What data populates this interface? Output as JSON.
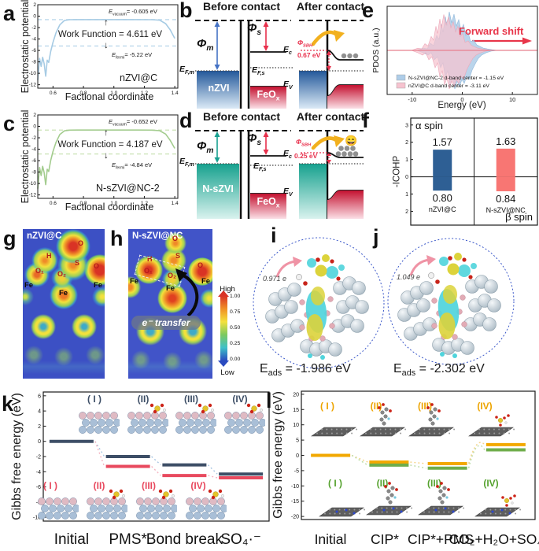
{
  "chart_data": [
    {
      "id": "a",
      "type": "line",
      "title": "nZVI@C",
      "xlabel": "Factional coordinate",
      "ylabel": "Electrostatic potential",
      "xlim": [
        0.5,
        1.42
      ],
      "ylim": [
        -12.6,
        2
      ],
      "xticks": [
        0.6,
        0.8,
        1.0,
        1.2,
        1.4
      ],
      "yticks": [
        2,
        0,
        -2,
        -4,
        -6,
        -8,
        -10,
        -12
      ],
      "e_vacuum_eV": -0.605,
      "e_fermi_eV": -5.22,
      "work_function_eV": 4.611,
      "color": "#a6cbe4",
      "dash_color": "#bcd8ec",
      "curve_x": [
        0.5,
        0.512,
        0.522,
        0.532,
        0.542,
        0.552,
        0.562,
        0.572,
        0.585,
        0.6,
        0.62,
        0.645,
        0.675,
        0.71,
        0.76,
        0.85,
        1.0,
        1.15,
        1.25,
        1.3,
        1.34,
        1.37,
        1.4
      ],
      "curve_y": [
        -11.2,
        -7.4,
        -8.8,
        -7.2,
        -8.3,
        -10.5,
        -7.7,
        -8.1,
        -6.2,
        -4.6,
        -2.9,
        -1.5,
        -0.75,
        -0.62,
        -0.61,
        -0.61,
        -0.61,
        -0.61,
        -0.62,
        -0.7,
        -1.3,
        -2.4,
        -3.9
      ]
    },
    {
      "id": "c",
      "type": "line",
      "title": "N-sZVI@NC-2",
      "xlabel": "Factional coordinate",
      "ylabel": "Electrostatic potential",
      "xlim": [
        0.5,
        1.42
      ],
      "ylim": [
        -12.6,
        2
      ],
      "xticks": [
        0.6,
        0.8,
        1.0,
        1.2,
        1.4
      ],
      "yticks": [
        2,
        0,
        -2,
        -4,
        -6,
        -8,
        -10,
        -12
      ],
      "e_vacuum_eV": -0.652,
      "e_fermi_eV": -4.84,
      "work_function_eV": 4.187,
      "color": "#a3cc8e",
      "dash_color": "#c9e2b4",
      "curve_x": [
        0.5,
        0.512,
        0.522,
        0.532,
        0.542,
        0.552,
        0.562,
        0.572,
        0.585,
        0.6,
        0.62,
        0.645,
        0.675,
        0.71,
        0.76,
        0.85,
        1.0,
        1.15,
        1.25,
        1.3,
        1.34,
        1.37,
        1.4
      ],
      "curve_y": [
        -10.9,
        -7.2,
        -8.6,
        -7.0,
        -8.1,
        -10.2,
        -7.5,
        -7.9,
        -6.0,
        -4.4,
        -2.8,
        -1.4,
        -0.78,
        -0.66,
        -0.65,
        -0.65,
        -0.65,
        -0.65,
        -0.66,
        -0.75,
        -1.35,
        -2.45,
        -3.85
      ]
    },
    {
      "id": "e",
      "type": "area",
      "ylabel": "PDOS (a.u.)",
      "xlabel": "Energy (eV)",
      "xlim": [
        -15,
        15
      ],
      "xticks": [
        -10,
        0,
        10
      ],
      "annotation": "Forward shift",
      "zero_line_color": "#e8808e",
      "series": [
        {
          "name": "N-sZVI@NC-2",
          "d_band_center_eV": -1.15,
          "fill": "#aecde8"
        },
        {
          "name": "nZVI@C",
          "d_band_center_eV": -3.11,
          "fill": "#f6c3cf"
        }
      ],
      "legend": [
        "N-sZVI@NC-2 d-band center = -1.15 eV",
        "nZVI@C d-band center = -3.11 eV"
      ]
    },
    {
      "id": "f",
      "type": "bar",
      "ylabel": "-ICOHP",
      "ylim": [
        -2.8,
        3.4
      ],
      "ytick_vals": [
        3,
        2,
        1,
        0,
        -1,
        -2
      ],
      "ytick_labels": [
        "3",
        "2",
        "1",
        "0",
        "1",
        "2"
      ],
      "alpha_label": "α spin",
      "beta_label": "β spin",
      "categories": [
        "nZVI@C",
        "N-sZVI@NC"
      ],
      "alpha_values": [
        1.57,
        1.63
      ],
      "beta_values": [
        0.8,
        0.84
      ],
      "alpha_value_labels": [
        "1.57",
        "1.63"
      ],
      "beta_value_labels": [
        "0.80",
        "0.84"
      ],
      "bar_colors": [
        "#2e5f94",
        "#f87673"
      ]
    },
    {
      "id": "k",
      "type": "level-diagram",
      "ylabel": "Gibbs free energy (eV)",
      "ylim": [
        -10.5,
        6.5
      ],
      "yticks": [
        6,
        4,
        2,
        0,
        -2,
        -4,
        -6,
        -8,
        -10
      ],
      "categories": [
        "Initial",
        "PMS*",
        "Bond break",
        "SO₄·⁻"
      ],
      "connector_bump": [
        0,
        0,
        0
      ],
      "series": [
        {
          "name": "nZVI@C-pathway",
          "color": "#3d4e66",
          "connector": "#a9c6e2",
          "values": [
            0,
            -2.0,
            -3.1,
            -4.3
          ]
        },
        {
          "name": "N-sZVI@NC-pathway",
          "color": "#e8495e",
          "connector": "#f4b4c1",
          "values": [
            null,
            -3.3,
            -4.5,
            -4.8
          ]
        }
      ],
      "insets_top": [
        "( I )",
        "(II)",
        "(III)",
        "(IV)"
      ],
      "insets_bottom": [
        "( I )",
        "(II)",
        "(III)",
        "(IV)"
      ]
    },
    {
      "id": "l",
      "type": "level-diagram",
      "ylabel": "Gibbs free energy (eV)",
      "ylim": [
        -21,
        21
      ],
      "yticks": [
        20,
        15,
        10,
        5,
        0,
        -5,
        -10,
        -15,
        -20
      ],
      "categories": [
        "Initial",
        "CIP*",
        "CIP*+PMS",
        "CO₂+H₂O+SO₄"
      ],
      "connector_bump": [
        0,
        0,
        6.5
      ],
      "series": [
        {
          "name": "pathway-1",
          "color": "#f2a800",
          "connector": "#f6d489",
          "values": [
            0,
            -2.2,
            -2.7,
            3.5
          ]
        },
        {
          "name": "pathway-2",
          "color": "#6fad4b",
          "connector": "#bcdca6",
          "values": [
            null,
            -3.2,
            -4.2,
            1.8
          ]
        }
      ],
      "insets_top": [
        "( I )",
        "(II)",
        "(III)",
        "(IV)"
      ],
      "insets_bottom": [
        "( I )",
        "(II)",
        "(III)",
        "(IV)"
      ]
    }
  ],
  "panel_a": {
    "letter": "a",
    "evac_base": "E",
    "evac_sub": "vacuum",
    "evac_val": "= -0.605 eV",
    "arrow_up": "↑",
    "arrow_down": "↓",
    "work_function": "Work Function = 4.611 eV",
    "efermi_base": "E",
    "efermi_sub": "fermi",
    "efermi_val": "= -5.22 eV"
  },
  "panel_c": {
    "letter": "c",
    "evac_base": "E",
    "evac_sub": "vacuum",
    "evac_val": "= -0.652 eV",
    "arrow_up": "↑",
    "arrow_down": "↓",
    "work_function": "Work Function = 4.187 eV",
    "efermi_base": "E",
    "efermi_sub": "fermi",
    "efermi_val": "= -4.84 eV"
  },
  "panel_b": {
    "letter": "b",
    "before_title": "Before contact",
    "after_title": "After contact",
    "phi_base": "Φ",
    "phi_m_sub": "m",
    "phi_s_sub": "s",
    "efm_base": "E",
    "efm_sub": "F,m",
    "ec_base": "E",
    "ec_sub": "c",
    "efs_base": "E",
    "efs_sub": "F,s",
    "ev_base": "E",
    "ev_sub": "V",
    "metal_label": "nZVI",
    "oxide_base": "FeO",
    "oxide_sub": "x",
    "sbh_base": "Φ",
    "sbh_sub": "SBH",
    "sbh_value": "0.67 eV"
  },
  "panel_d": {
    "letter": "d",
    "before_title": "Before contact",
    "after_title": "After contact",
    "phi_base": "Φ",
    "phi_m_sub": "m",
    "phi_s_sub": "s",
    "efm_base": "E",
    "efm_sub": "F,m",
    "ec_base": "E",
    "ec_sub": "c",
    "efs_base": "E",
    "efs_sub": "F,s",
    "ev_base": "E",
    "ev_sub": "V",
    "metal_label": "N-sZVI",
    "oxide_base": "FeO",
    "oxide_sub": "x",
    "sbh_base": "Φ",
    "sbh_sub": "SBH",
    "sbh_value": "0.25 eV",
    "emoji": "😄"
  },
  "panel_e": {
    "letter": "e"
  },
  "panel_f": {
    "letter": "f"
  },
  "panel_g": {
    "letter": "g",
    "title": "nZVI@C",
    "atom_o_top": "O",
    "atom_h": "H",
    "atom_s": "S",
    "atom_o1": "O₁",
    "atom_o2": "O₂",
    "atom_o_right": "O",
    "atom_fe_left": "Fe",
    "atom_fe_center": "Fe",
    "atom_fe_right": "Fe"
  },
  "panel_h": {
    "letter": "h",
    "title": "N-sZVI@NC",
    "atom_o_top": "O",
    "atom_h": "H",
    "atom_s": "S",
    "atom_o1": "O₁",
    "atom_o2": "O₂",
    "atom_o_right": "O",
    "atom_fe_left": "Fe",
    "atom_fe_center": "Fe",
    "atom_fe_right": "Fe",
    "transfer_label": "e⁻ transfer"
  },
  "colorbar": {
    "high": "High",
    "low": "Low",
    "ticks": [
      "1.00",
      "0.75",
      "0.50",
      "0.25",
      "0.00"
    ]
  },
  "panel_i": {
    "letter": "i",
    "charge_label": "0.971 e",
    "eads_base": "E",
    "eads_sub": "ads",
    "eads_val": " = -1.986 eV"
  },
  "panel_j": {
    "letter": "j",
    "charge_label": "1.049 e",
    "eads_base": "E",
    "eads_sub": "ads",
    "eads_val": " = -2.302 eV"
  },
  "panel_k": {
    "letter": "k"
  },
  "panel_l": {
    "letter": "l"
  }
}
